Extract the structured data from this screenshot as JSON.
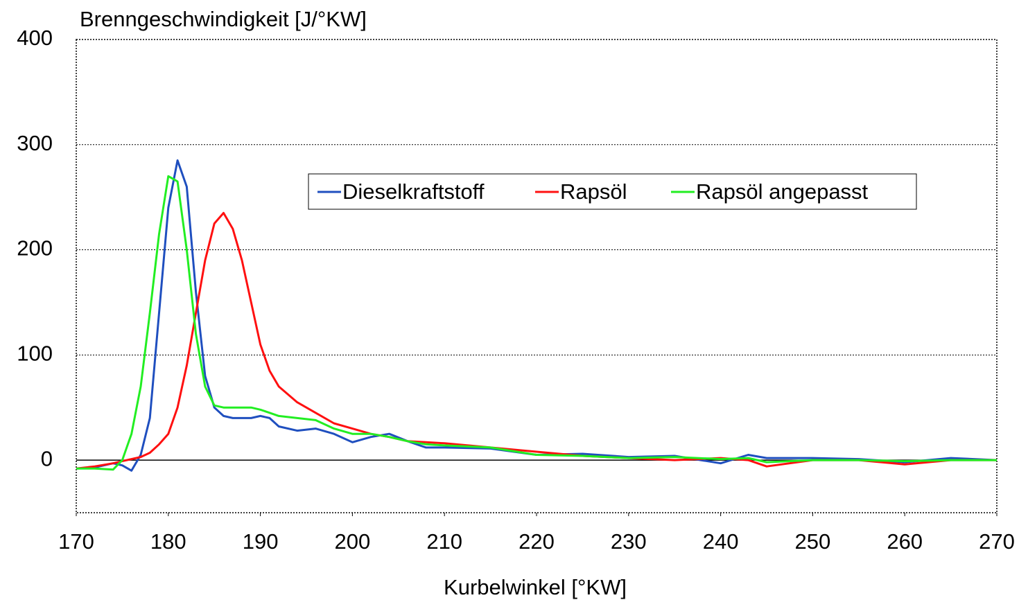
{
  "chart_data": {
    "type": "line",
    "y_label": "Brenngeschwindigkeit [J/°KW]",
    "x_label": "Kurbelwinkel [°KW]",
    "x": [
      170,
      172,
      174,
      175,
      176,
      177,
      178,
      179,
      180,
      181,
      182,
      183,
      184,
      185,
      186,
      187,
      188,
      189,
      190,
      191,
      192,
      194,
      196,
      198,
      200,
      202,
      204,
      206,
      208,
      210,
      215,
      220,
      225,
      230,
      235,
      240,
      243,
      245,
      250,
      255,
      260,
      265,
      270
    ],
    "series": [
      {
        "name": "Dieselkraftstoff",
        "color": "#1f4fbf",
        "values": [
          -8,
          -7,
          -3,
          -5,
          -10,
          5,
          40,
          140,
          240,
          285,
          260,
          160,
          80,
          50,
          42,
          40,
          40,
          40,
          42,
          40,
          32,
          28,
          30,
          25,
          17,
          22,
          25,
          18,
          12,
          12,
          11,
          5,
          6,
          3,
          4,
          -3,
          5,
          2,
          2,
          1,
          -2,
          2,
          0
        ]
      },
      {
        "name": "Rapsöl",
        "color": "#ff1010",
        "values": [
          -8,
          -6,
          -3,
          -1,
          1,
          3,
          7,
          15,
          25,
          50,
          90,
          140,
          190,
          225,
          235,
          220,
          190,
          150,
          110,
          85,
          70,
          55,
          45,
          35,
          30,
          25,
          22,
          18,
          17,
          16,
          12,
          8,
          4,
          2,
          0,
          2,
          0,
          -6,
          0,
          0,
          -4,
          0,
          0
        ]
      },
      {
        "name": "Rapsöl angepasst",
        "color": "#22ee22",
        "values": [
          -8,
          -8,
          -9,
          0,
          25,
          70,
          140,
          215,
          270,
          265,
          200,
          120,
          70,
          52,
          50,
          50,
          50,
          50,
          48,
          45,
          42,
          40,
          38,
          30,
          25,
          25,
          22,
          18,
          15,
          14,
          12,
          5,
          4,
          2,
          3,
          1,
          2,
          -2,
          0,
          0,
          -1,
          0,
          0
        ]
      }
    ],
    "xlim": [
      170,
      270
    ],
    "xticks": [
      170,
      180,
      190,
      200,
      210,
      220,
      230,
      240,
      250,
      260,
      270
    ],
    "ylim": [
      -50,
      400
    ],
    "yticks": [
      0,
      100,
      200,
      300,
      400
    ],
    "grid": true
  }
}
